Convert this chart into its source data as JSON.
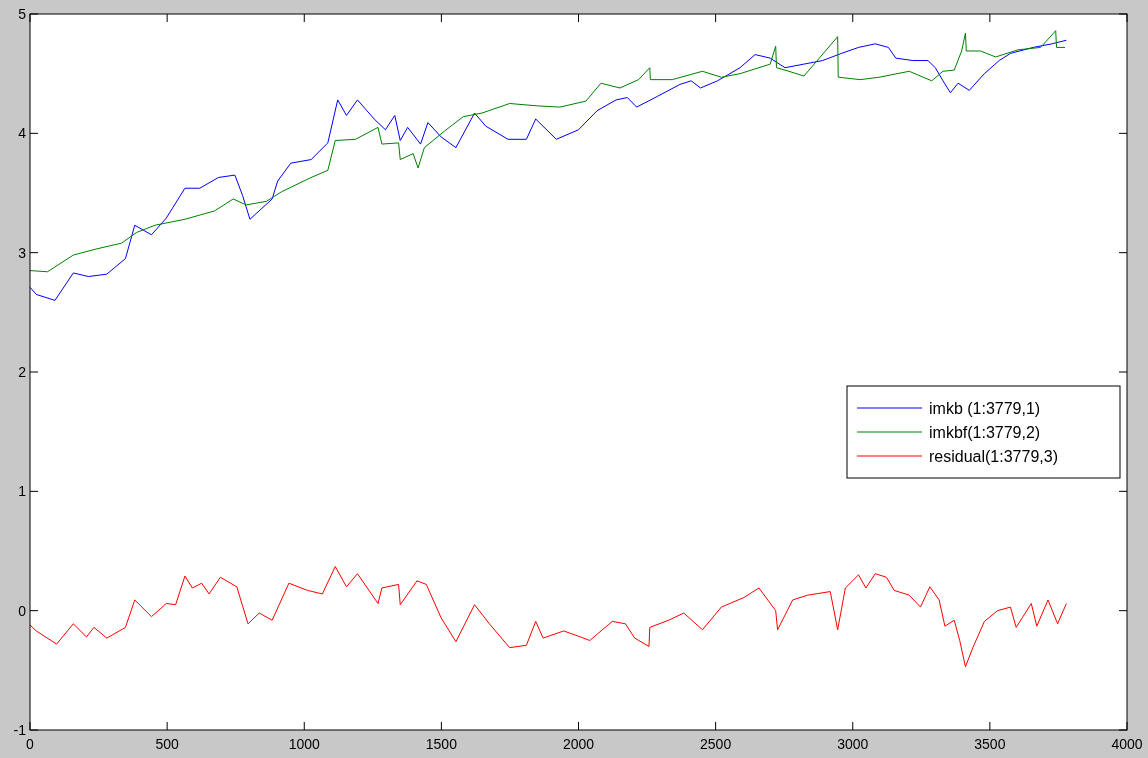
{
  "chart_data": {
    "type": "line",
    "xlim": [
      0,
      4000
    ],
    "ylim": [
      -1,
      5
    ],
    "xticks": [
      0,
      500,
      1000,
      1500,
      2000,
      2500,
      3000,
      3500,
      4000
    ],
    "yticks": [
      -1,
      0,
      1,
      2,
      3,
      4,
      5
    ],
    "grid": false,
    "legend": "right",
    "line_style": "solid",
    "marker": "none",
    "series": [
      {
        "name": "imkb (1:3779,1)",
        "color": "#0000ff",
        "x": [
          0,
          23,
          91,
          158,
          213,
          280,
          348,
          382,
          443,
          497,
          565,
          619,
          687,
          747,
          775,
          802,
          883,
          903,
          951,
          1025,
          1086,
          1122,
          1154,
          1194,
          1255,
          1296,
          1330,
          1350,
          1377,
          1424,
          1451,
          1499,
          1553,
          1621,
          1662,
          1743,
          1810,
          1844,
          1919,
          2000,
          2068,
          2137,
          2178,
          2212,
          2288,
          2370,
          2411,
          2445,
          2507,
          2589,
          2644,
          2699,
          2753,
          2822,
          2890,
          2959,
          3021,
          3082,
          3130,
          3157,
          3219,
          3274,
          3301,
          3329,
          3356,
          3384,
          3425,
          3480,
          3534,
          3575,
          3658,
          3726,
          3779
        ],
        "values": [
          2.71,
          2.65,
          2.6,
          2.83,
          2.8,
          2.82,
          2.95,
          3.23,
          3.15,
          3.29,
          3.54,
          3.54,
          3.63,
          3.65,
          3.48,
          3.28,
          3.45,
          3.6,
          3.75,
          3.78,
          3.92,
          4.28,
          4.15,
          4.28,
          4.12,
          4.03,
          4.15,
          3.94,
          4.05,
          3.91,
          4.09,
          3.97,
          3.88,
          4.17,
          4.06,
          3.95,
          3.95,
          4.12,
          3.95,
          4.03,
          4.19,
          4.28,
          4.3,
          4.22,
          4.31,
          4.41,
          4.44,
          4.38,
          4.44,
          4.55,
          4.66,
          4.63,
          4.55,
          4.58,
          4.61,
          4.67,
          4.72,
          4.75,
          4.72,
          4.63,
          4.61,
          4.61,
          4.55,
          4.44,
          4.34,
          4.42,
          4.36,
          4.5,
          4.61,
          4.67,
          4.72,
          4.75,
          4.78
        ]
      },
      {
        "name": "imkbf(1:3779,2)",
        "color": "#008000",
        "x": [
          0,
          64,
          158,
          240,
          334,
          389,
          456,
          565,
          673,
          741,
          788,
          862,
          917,
          1025,
          1086,
          1113,
          1187,
          1269,
          1283,
          1344,
          1350,
          1397,
          1415,
          1438,
          1512,
          1580,
          1648,
          1749,
          1851,
          1932,
          2027,
          2082,
          2151,
          2219,
          2260,
          2262,
          2342,
          2452,
          2521,
          2589,
          2699,
          2719,
          2722,
          2753,
          2822,
          2945,
          2947,
          2950,
          3027,
          3096,
          3206,
          3288,
          3329,
          3370,
          3397,
          3411,
          3414,
          3466,
          3521,
          3603,
          3685,
          3740,
          3743,
          3774
        ],
        "values": [
          2.85,
          2.84,
          2.98,
          3.03,
          3.08,
          3.17,
          3.23,
          3.28,
          3.35,
          3.45,
          3.4,
          3.43,
          3.51,
          3.63,
          3.69,
          3.94,
          3.95,
          4.05,
          3.91,
          3.92,
          3.78,
          3.83,
          3.71,
          3.88,
          4.02,
          4.14,
          4.17,
          4.25,
          4.23,
          4.22,
          4.27,
          4.42,
          4.38,
          4.45,
          4.55,
          4.45,
          4.45,
          4.52,
          4.47,
          4.5,
          4.58,
          4.73,
          4.55,
          4.53,
          4.48,
          4.81,
          4.47,
          4.47,
          4.45,
          4.47,
          4.52,
          4.44,
          4.52,
          4.53,
          4.69,
          4.84,
          4.69,
          4.69,
          4.64,
          4.7,
          4.72,
          4.86,
          4.72,
          4.72
        ]
      },
      {
        "name": "residual(1:3779,3)",
        "color": "#ff0000",
        "x": [
          0,
          23,
          97,
          158,
          206,
          233,
          280,
          348,
          382,
          443,
          497,
          531,
          565,
          592,
          626,
          653,
          694,
          754,
          795,
          836,
          883,
          944,
          1012,
          1066,
          1113,
          1154,
          1194,
          1269,
          1283,
          1344,
          1350,
          1411,
          1445,
          1499,
          1553,
          1621,
          1675,
          1749,
          1810,
          1844,
          1871,
          1946,
          2007,
          2041,
          2123,
          2171,
          2205,
          2257,
          2260,
          2329,
          2384,
          2452,
          2521,
          2603,
          2658,
          2719,
          2726,
          2781,
          2836,
          2918,
          2945,
          2973,
          3021,
          3048,
          3082,
          3123,
          3151,
          3206,
          3247,
          3281,
          3315,
          3336,
          3370,
          3390,
          3411,
          3438,
          3480,
          3528,
          3575,
          3596,
          3651,
          3671,
          3712,
          3747,
          3779
        ],
        "values": [
          -0.12,
          -0.17,
          -0.28,
          -0.11,
          -0.22,
          -0.14,
          -0.23,
          -0.14,
          0.09,
          -0.05,
          0.06,
          0.05,
          0.29,
          0.19,
          0.23,
          0.14,
          0.28,
          0.2,
          -0.11,
          -0.02,
          -0.08,
          0.23,
          0.17,
          0.14,
          0.37,
          0.2,
          0.31,
          0.06,
          0.19,
          0.22,
          0.05,
          0.25,
          0.22,
          -0.06,
          -0.26,
          0.05,
          -0.11,
          -0.31,
          -0.29,
          -0.09,
          -0.23,
          -0.17,
          -0.22,
          -0.25,
          -0.09,
          -0.11,
          -0.23,
          -0.3,
          -0.14,
          -0.08,
          -0.02,
          -0.16,
          0.03,
          0.11,
          0.19,
          0,
          -0.16,
          0.09,
          0.13,
          0.16,
          -0.16,
          0.19,
          0.3,
          0.19,
          0.31,
          0.28,
          0.17,
          0.13,
          0.03,
          0.2,
          0.09,
          -0.13,
          -0.08,
          -0.25,
          -0.47,
          -0.31,
          -0.09,
          0,
          0.03,
          -0.14,
          0.06,
          -0.13,
          0.09,
          -0.11,
          0.06
        ]
      }
    ]
  }
}
